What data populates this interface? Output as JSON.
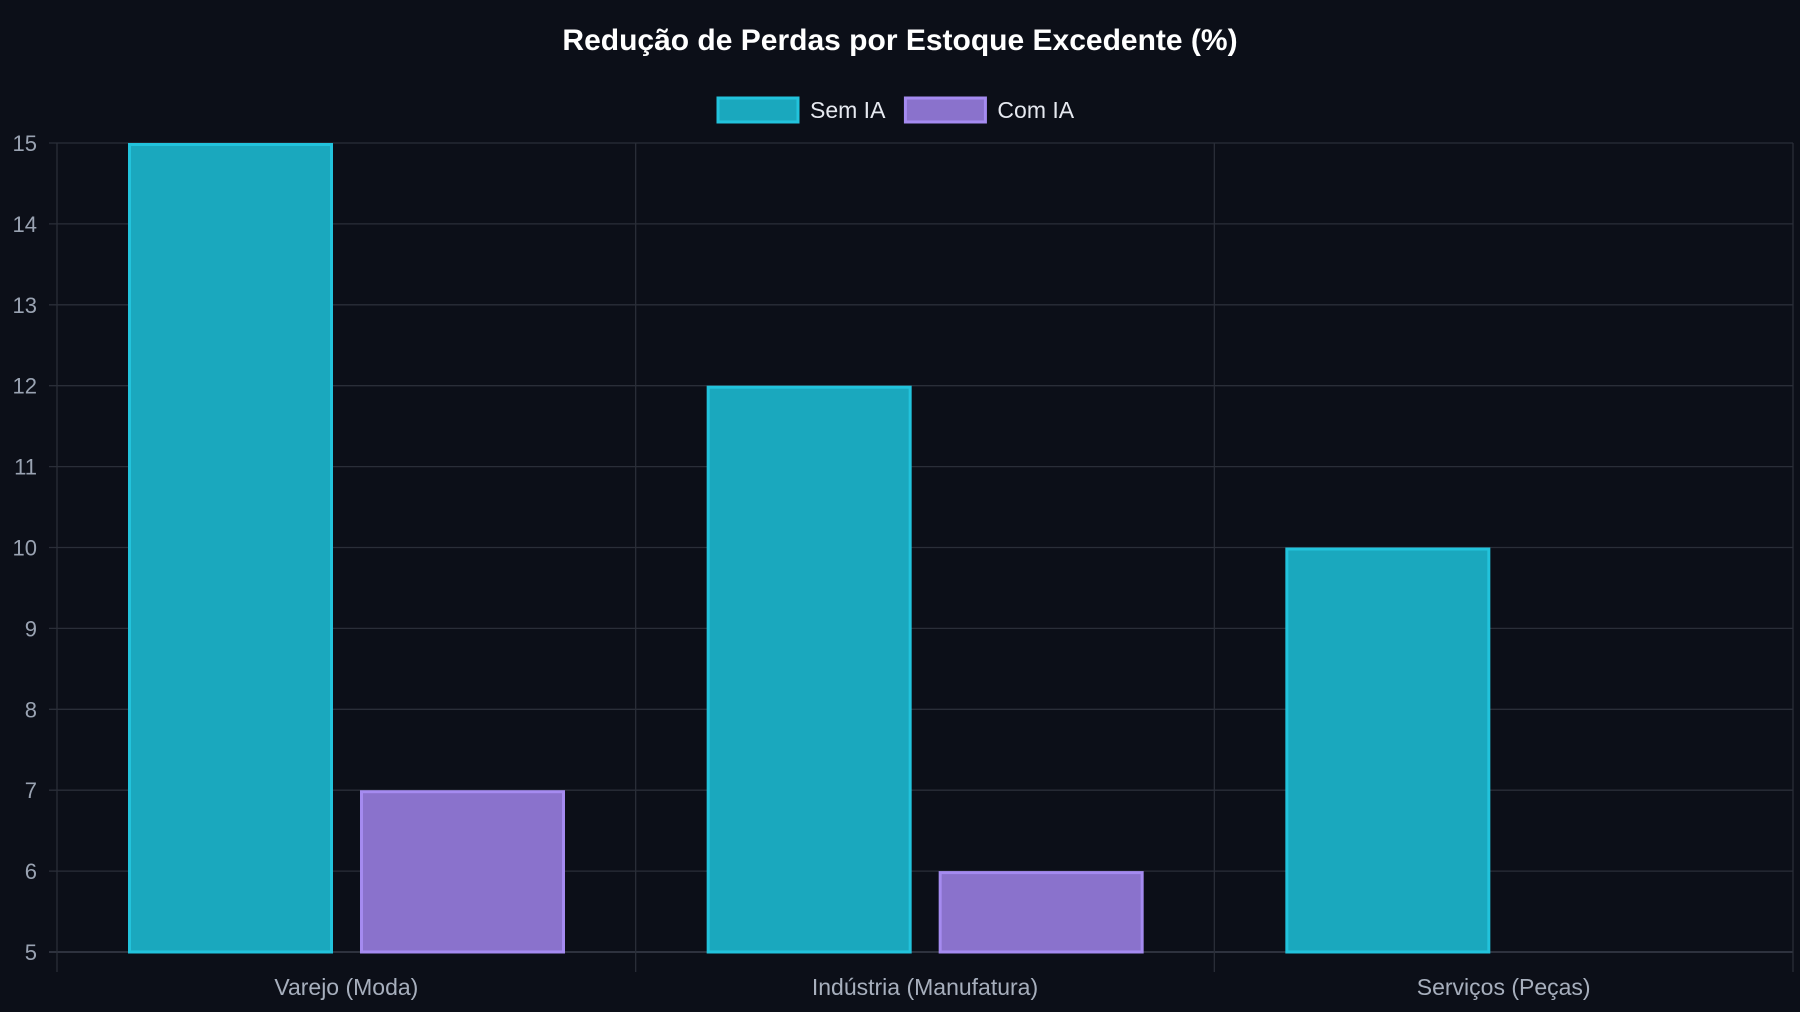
{
  "chart_data": {
    "type": "bar",
    "title": "Redução de Perdas por Estoque Excedente (%)",
    "categories": [
      "Varejo (Moda)",
      "Indústria (Manufatura)",
      "Serviços (Peças)"
    ],
    "series": [
      {
        "name": "Sem IA",
        "values": [
          15,
          12,
          10
        ],
        "color": "#1aa8be",
        "border": "#22c3dc"
      },
      {
        "name": "Com IA",
        "values": [
          7,
          6,
          5
        ],
        "color": "#8a72cc",
        "border": "#a58bf0"
      }
    ],
    "ylim": [
      5,
      15
    ],
    "yticks": [
      5,
      6,
      7,
      8,
      9,
      10,
      11,
      12,
      13,
      14,
      15
    ],
    "xlabel": "",
    "ylabel": "",
    "grid": true,
    "legend_position": "top-center"
  },
  "colors": {
    "background": "#0c0f18",
    "grid": "#2a2e38",
    "text": "#ffffff",
    "muted_text": "#9aa3b2"
  }
}
